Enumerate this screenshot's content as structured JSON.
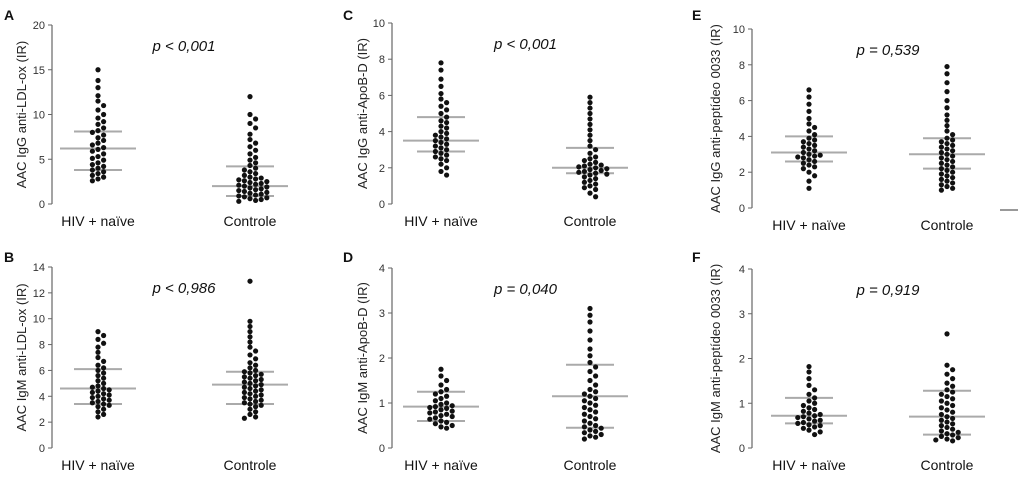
{
  "chart_data": [
    {
      "panel": "A",
      "type": "scatter",
      "ylabel": "AAC IgG anti-LDL-ox (IR)",
      "annotation": "p < 0,001",
      "ylim": [
        0,
        20
      ],
      "yticks": [
        0,
        5,
        10,
        15,
        20
      ],
      "categories": [
        "HIV + naïve",
        "Controle"
      ],
      "groups": [
        {
          "name": "HIV + naïve",
          "median": 6.2,
          "q1": 3.8,
          "q3": 8.1,
          "values": [
            15.0,
            13.8,
            13.0,
            12.1,
            11.5,
            11.0,
            10.5,
            10.0,
            9.6,
            9.2,
            8.9,
            8.5,
            8.2,
            8.0,
            7.7,
            7.4,
            7.1,
            6.8,
            6.6,
            6.3,
            6.1,
            5.9,
            5.6,
            5.3,
            5.1,
            4.9,
            4.6,
            4.4,
            4.2,
            4.0,
            3.8,
            3.6,
            3.4,
            3.2,
            3.0,
            2.8,
            2.6
          ]
        },
        {
          "name": "Controle",
          "median": 2.0,
          "q1": 0.9,
          "q3": 4.2,
          "values": [
            12.0,
            10.0,
            9.5,
            9.0,
            8.5,
            7.8,
            7.2,
            6.8,
            6.4,
            6.0,
            5.6,
            5.2,
            4.9,
            4.6,
            4.3,
            4.0,
            3.8,
            3.6,
            3.4,
            3.2,
            3.0,
            2.9,
            2.8,
            2.7,
            2.6,
            2.5,
            2.4,
            2.3,
            2.2,
            2.1,
            2.0,
            1.9,
            1.8,
            1.7,
            1.6,
            1.5,
            1.4,
            1.3,
            1.2,
            1.1,
            1.0,
            0.9,
            0.8,
            0.7,
            0.6,
            0.5,
            0.4,
            0.3
          ]
        }
      ]
    },
    {
      "panel": "B",
      "type": "scatter",
      "ylabel": "AAC IgM anti-LDL-ox (IR)",
      "annotation": "p < 0,986",
      "ylim": [
        0,
        14
      ],
      "yticks": [
        0,
        2,
        4,
        6,
        8,
        10,
        12,
        14
      ],
      "categories": [
        "HIV + naïve",
        "Controle"
      ],
      "groups": [
        {
          "name": "HIV + naïve",
          "median": 4.6,
          "q1": 3.4,
          "q3": 6.1,
          "values": [
            9.0,
            8.7,
            8.4,
            8.1,
            7.8,
            7.4,
            7.0,
            6.7,
            6.4,
            6.2,
            6.0,
            5.8,
            5.6,
            5.4,
            5.2,
            5.0,
            4.8,
            4.7,
            4.6,
            4.5,
            4.4,
            4.3,
            4.2,
            4.1,
            4.0,
            3.9,
            3.8,
            3.7,
            3.6,
            3.5,
            3.4,
            3.3,
            3.2,
            3.0,
            2.8,
            2.6,
            2.4
          ]
        },
        {
          "name": "Controle",
          "median": 4.9,
          "q1": 3.4,
          "q3": 5.9,
          "values": [
            12.9,
            9.8,
            9.4,
            9.0,
            8.6,
            8.2,
            7.8,
            7.5,
            7.2,
            6.9,
            6.6,
            6.4,
            6.2,
            6.0,
            5.9,
            5.8,
            5.7,
            5.6,
            5.5,
            5.4,
            5.3,
            5.2,
            5.1,
            5.0,
            4.9,
            4.8,
            4.7,
            4.6,
            4.5,
            4.4,
            4.3,
            4.2,
            4.1,
            4.0,
            3.9,
            3.8,
            3.7,
            3.6,
            3.5,
            3.4,
            3.3,
            3.2,
            3.0,
            2.8,
            2.6,
            2.4,
            2.3
          ]
        }
      ]
    },
    {
      "panel": "C",
      "type": "scatter",
      "ylabel": "AAC IgG anti-ApoB-D (IR)",
      "annotation": "p < 0,001",
      "ylim": [
        0,
        10
      ],
      "yticks": [
        0,
        2,
        4,
        6,
        8,
        10
      ],
      "categories": [
        "HIV + naïve",
        "Controle"
      ],
      "groups": [
        {
          "name": "HIV + naïve",
          "median": 3.5,
          "q1": 2.9,
          "q3": 4.8,
          "values": [
            7.8,
            7.4,
            6.9,
            6.5,
            6.1,
            5.8,
            5.6,
            5.4,
            5.2,
            5.0,
            4.8,
            4.6,
            4.5,
            4.3,
            4.2,
            4.0,
            3.9,
            3.8,
            3.7,
            3.6,
            3.5,
            3.4,
            3.3,
            3.2,
            3.1,
            3.0,
            2.9,
            2.8,
            2.7,
            2.6,
            2.5,
            2.4,
            2.2,
            2.0,
            1.8,
            1.6
          ]
        },
        {
          "name": "Controle",
          "median": 2.0,
          "q1": 1.7,
          "q3": 3.1,
          "values": [
            5.9,
            5.6,
            5.3,
            5.0,
            4.7,
            4.4,
            4.1,
            3.8,
            3.5,
            3.2,
            3.0,
            2.8,
            2.6,
            2.5,
            2.4,
            2.3,
            2.2,
            2.15,
            2.1,
            2.05,
            2.0,
            1.95,
            1.9,
            1.85,
            1.8,
            1.75,
            1.7,
            1.65,
            1.6,
            1.5,
            1.4,
            1.3,
            1.2,
            1.1,
            1.0,
            0.9,
            0.8,
            0.6,
            0.4
          ]
        }
      ]
    },
    {
      "panel": "D",
      "type": "scatter",
      "ylabel": "AAC IgM anti-ApoB-D (IR)",
      "annotation": "p = 0,040",
      "ylim": [
        0,
        4
      ],
      "yticks": [
        0,
        1,
        2,
        3,
        4
      ],
      "categories": [
        "HIV + naïve",
        "Controle"
      ],
      "groups": [
        {
          "name": "HIV + naïve",
          "median": 0.92,
          "q1": 0.6,
          "q3": 1.25,
          "values": [
            1.75,
            1.6,
            1.5,
            1.4,
            1.3,
            1.25,
            1.2,
            1.15,
            1.1,
            1.05,
            1.0,
            0.97,
            0.94,
            0.92,
            0.9,
            0.88,
            0.85,
            0.82,
            0.8,
            0.78,
            0.75,
            0.72,
            0.7,
            0.67,
            0.64,
            0.6,
            0.57,
            0.54,
            0.5,
            0.47,
            0.44
          ]
        },
        {
          "name": "Controle",
          "median": 1.15,
          "q1": 0.45,
          "q3": 1.85,
          "values": [
            3.1,
            2.95,
            2.8,
            2.6,
            2.4,
            2.2,
            2.05,
            1.9,
            1.8,
            1.7,
            1.6,
            1.5,
            1.4,
            1.3,
            1.25,
            1.2,
            1.15,
            1.1,
            1.05,
            1.0,
            0.95,
            0.9,
            0.85,
            0.8,
            0.75,
            0.7,
            0.65,
            0.6,
            0.55,
            0.5,
            0.47,
            0.44,
            0.4,
            0.37,
            0.34,
            0.3,
            0.27,
            0.24,
            0.2
          ]
        }
      ]
    },
    {
      "panel": "E",
      "type": "scatter",
      "ylabel": "AAC IgG anti-peptídeo 0033 (IR)",
      "annotation": "p = 0,539",
      "ylim": [
        0,
        10
      ],
      "yticks": [
        0,
        2,
        4,
        6,
        8,
        10
      ],
      "categories": [
        "HIV + naïve",
        "Controle"
      ],
      "groups": [
        {
          "name": "HIV + naïve",
          "median": 3.1,
          "q1": 2.6,
          "q3": 4.0,
          "values": [
            6.6,
            6.2,
            5.8,
            5.4,
            5.0,
            4.7,
            4.5,
            4.3,
            4.1,
            3.9,
            3.8,
            3.7,
            3.6,
            3.5,
            3.4,
            3.3,
            3.2,
            3.1,
            3.0,
            2.95,
            2.9,
            2.85,
            2.8,
            2.7,
            2.6,
            2.5,
            2.4,
            2.3,
            2.2,
            2.0,
            1.8,
            1.5,
            1.1
          ]
        },
        {
          "name": "Controle",
          "median": 3.0,
          "q1": 2.2,
          "q3": 3.9,
          "values": [
            7.9,
            7.5,
            7.0,
            6.5,
            6.0,
            5.6,
            5.2,
            4.9,
            4.6,
            4.3,
            4.1,
            3.9,
            3.8,
            3.7,
            3.6,
            3.5,
            3.4,
            3.3,
            3.2,
            3.1,
            3.0,
            2.9,
            2.8,
            2.7,
            2.6,
            2.5,
            2.4,
            2.3,
            2.2,
            2.1,
            2.0,
            1.9,
            1.8,
            1.7,
            1.6,
            1.5,
            1.4,
            1.3,
            1.2,
            1.1,
            1.0
          ]
        }
      ]
    },
    {
      "panel": "F",
      "type": "scatter",
      "ylabel": "AAC IgM anti-peptídeo 0033 (IR)",
      "annotation": "p = 0,919",
      "ylim": [
        0,
        4
      ],
      "yticks": [
        0,
        1,
        2,
        3,
        4
      ],
      "categories": [
        "HIV + naïve",
        "Controle"
      ],
      "groups": [
        {
          "name": "HIV + naïve",
          "median": 0.72,
          "q1": 0.55,
          "q3": 1.12,
          "values": [
            1.82,
            1.7,
            1.55,
            1.4,
            1.3,
            1.2,
            1.12,
            1.05,
            1.0,
            0.95,
            0.9,
            0.86,
            0.82,
            0.78,
            0.75,
            0.72,
            0.7,
            0.68,
            0.65,
            0.62,
            0.6,
            0.57,
            0.55,
            0.52,
            0.5,
            0.47,
            0.44,
            0.4,
            0.36,
            0.3
          ]
        },
        {
          "name": "Controle",
          "median": 0.7,
          "q1": 0.3,
          "q3": 1.28,
          "values": [
            2.55,
            1.85,
            1.75,
            1.65,
            1.55,
            1.45,
            1.38,
            1.3,
            1.25,
            1.2,
            1.15,
            1.1,
            1.05,
            1.0,
            0.95,
            0.9,
            0.85,
            0.8,
            0.75,
            0.7,
            0.66,
            0.62,
            0.58,
            0.54,
            0.5,
            0.46,
            0.42,
            0.38,
            0.35,
            0.32,
            0.29,
            0.26,
            0.23,
            0.2,
            0.18,
            0.16
          ]
        }
      ]
    }
  ]
}
